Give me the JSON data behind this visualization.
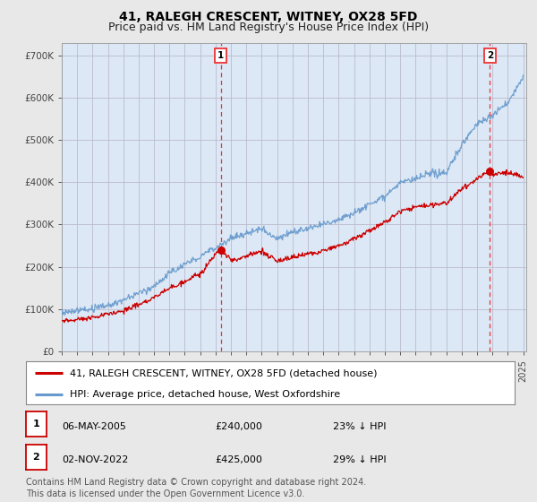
{
  "title": "41, RALEGH CRESCENT, WITNEY, OX28 5FD",
  "subtitle": "Price paid vs. HM Land Registry's House Price Index (HPI)",
  "ylim": [
    0,
    730000
  ],
  "yticks": [
    0,
    100000,
    200000,
    300000,
    400000,
    500000,
    600000,
    700000
  ],
  "ytick_labels": [
    "£0",
    "£100K",
    "£200K",
    "£300K",
    "£400K",
    "£500K",
    "£600K",
    "£700K"
  ],
  "background_color": "#e8e8e8",
  "plot_bg_color": "#dce8f5",
  "grid_color": "#bbbbcc",
  "hpi_color": "#6699cc",
  "price_color": "#cc0000",
  "sale1_date": 2005.35,
  "sale1_price": 240000,
  "sale2_date": 2022.84,
  "sale2_price": 425000,
  "vline_color": "#ee3333",
  "legend_house": "41, RALEGH CRESCENT, WITNEY, OX28 5FD (detached house)",
  "legend_hpi": "HPI: Average price, detached house, West Oxfordshire",
  "annotation1_date": "06-MAY-2005",
  "annotation1_price": "£240,000",
  "annotation1_pct": "23% ↓ HPI",
  "annotation2_date": "02-NOV-2022",
  "annotation2_price": "£425,000",
  "annotation2_pct": "29% ↓ HPI",
  "footnote": "Contains HM Land Registry data © Crown copyright and database right 2024.\nThis data is licensed under the Open Government Licence v3.0.",
  "title_fontsize": 10,
  "subtitle_fontsize": 9,
  "tick_fontsize": 7.5,
  "legend_fontsize": 8,
  "annotation_fontsize": 8,
  "footnote_fontsize": 7
}
